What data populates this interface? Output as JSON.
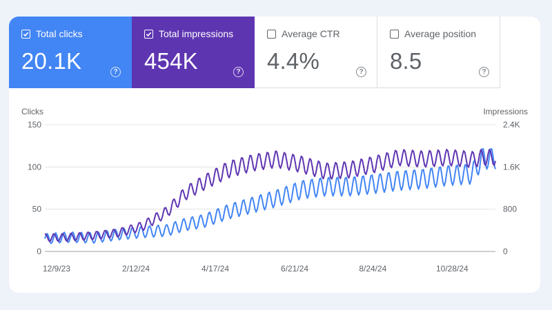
{
  "metrics": [
    {
      "label": "Total clicks",
      "value": "20.1K",
      "checked": true,
      "color": "#4285f4"
    },
    {
      "label": "Total impressions",
      "value": "454K",
      "checked": true,
      "color": "#5e35b1"
    },
    {
      "label": "Average CTR",
      "value": "4.4%",
      "checked": false
    },
    {
      "label": "Average position",
      "value": "8.5",
      "checked": false
    }
  ],
  "help_glyph": "?",
  "chart_data": {
    "type": "line",
    "left_axis_title": "Clicks",
    "right_axis_title": "Impressions",
    "y_left_ticks": [
      "150",
      "100",
      "50",
      "0"
    ],
    "y_right_ticks": [
      "2.4K",
      "1.6K",
      "800",
      "0"
    ],
    "ylim_left": [
      0,
      150
    ],
    "ylim_right": [
      0,
      2400
    ],
    "x_tick_labels": [
      "12/9/23",
      "2/12/24",
      "4/17/24",
      "6/21/24",
      "8/24/24",
      "10/28/24"
    ],
    "x_range": [
      "2023-12-09",
      "2024-12-12"
    ],
    "grid": true,
    "series": [
      {
        "name": "Clicks",
        "axis": "left",
        "color": "#4285f4",
        "keys": [
          [
            0,
            15
          ],
          [
            20,
            17
          ],
          [
            40,
            16
          ],
          [
            60,
            20
          ],
          [
            80,
            23
          ],
          [
            100,
            25
          ],
          [
            115,
            32
          ],
          [
            130,
            36
          ],
          [
            150,
            47
          ],
          [
            170,
            55
          ],
          [
            190,
            63
          ],
          [
            210,
            73
          ],
          [
            230,
            77
          ],
          [
            250,
            77
          ],
          [
            270,
            80
          ],
          [
            290,
            84
          ],
          [
            310,
            86
          ],
          [
            330,
            90
          ],
          [
            350,
            92
          ],
          [
            358,
            110
          ]
        ],
        "weekly_amplitude": 10
      },
      {
        "name": "Impressions",
        "axis": "right",
        "color": "#5e35b1",
        "keys": [
          [
            0,
            260
          ],
          [
            20,
            270
          ],
          [
            40,
            300
          ],
          [
            60,
            350
          ],
          [
            80,
            480
          ],
          [
            100,
            750
          ],
          [
            115,
            1100
          ],
          [
            130,
            1300
          ],
          [
            150,
            1550
          ],
          [
            170,
            1680
          ],
          [
            190,
            1750
          ],
          [
            210,
            1650
          ],
          [
            230,
            1520
          ],
          [
            250,
            1550
          ],
          [
            270,
            1650
          ],
          [
            290,
            1780
          ],
          [
            310,
            1750
          ],
          [
            330,
            1780
          ],
          [
            350,
            1740
          ],
          [
            358,
            1780
          ]
        ],
        "weekly_amplitude": 120
      }
    ]
  }
}
